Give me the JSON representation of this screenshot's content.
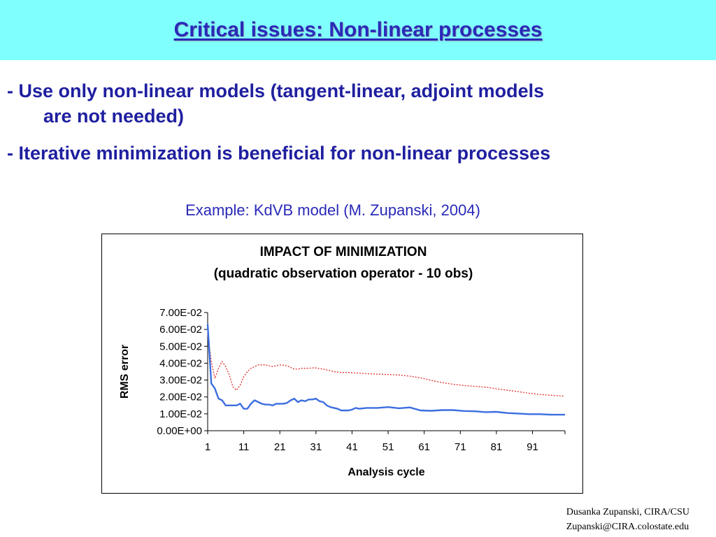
{
  "slide": {
    "title": "Critical issues: Non-linear processes",
    "bullet1_line1": "- Use only non-linear models (tangent-linear, adjoint models",
    "bullet1_line2": "are not needed)",
    "bullet2": "- Iterative minimization is beneficial for non-linear processes",
    "example": "Example: KdVB model (M. Zupanski, 2004)",
    "footer_line1": "Dusanka Zupanski,  CIRA/CSU",
    "footer_line2": "Zupanski@CIRA.colostate.edu"
  },
  "colors": {
    "title_band": "#80ffff",
    "title_text": "#2a2ab8",
    "bullet_text": "#1f1fa0",
    "series_dashed": "#e03030",
    "series_solid": "#3c6ee0"
  },
  "chart_data": {
    "type": "line",
    "title": "IMPACT OF MINIMIZATION",
    "subtitle": "(quadratic observation operator - 10 obs)",
    "xlabel": "Analysis cycle",
    "ylabel": "RMS error",
    "xlim": [
      1,
      100
    ],
    "ylim": [
      0,
      0.07
    ],
    "x_ticks": [
      1,
      11,
      21,
      31,
      41,
      51,
      61,
      71,
      81,
      91
    ],
    "y_ticks": [
      0,
      0.01,
      0.02,
      0.03,
      0.04,
      0.05,
      0.06,
      0.07
    ],
    "y_tick_labels": [
      "0.00E+00",
      "1.00E-02",
      "2.00E-02",
      "3.00E-02",
      "4.00E-02",
      "5.00E-02",
      "6.00E-02",
      "7.00E-02"
    ],
    "grid": false,
    "legend": "none",
    "series": [
      {
        "style": "dashed",
        "color": "#e03030",
        "x": [
          1,
          2,
          3,
          4,
          5,
          6,
          7,
          8,
          9,
          10,
          11,
          12,
          13,
          14,
          15,
          16,
          17,
          18,
          19,
          20,
          21,
          22,
          23,
          24,
          25,
          26,
          27,
          28,
          29,
          30,
          31,
          32,
          33,
          34,
          35,
          36,
          37,
          38,
          39,
          40,
          42,
          45,
          48,
          51,
          54,
          57,
          60,
          63,
          66,
          69,
          72,
          75,
          78,
          81,
          84,
          87,
          90,
          93,
          96,
          100
        ],
        "y": [
          0.058,
          0.041,
          0.031,
          0.037,
          0.041,
          0.038,
          0.033,
          0.026,
          0.024,
          0.027,
          0.032,
          0.035,
          0.037,
          0.038,
          0.039,
          0.039,
          0.039,
          0.0385,
          0.038,
          0.0385,
          0.039,
          0.0388,
          0.0385,
          0.0375,
          0.0365,
          0.0365,
          0.037,
          0.037,
          0.037,
          0.0372,
          0.0372,
          0.0368,
          0.0365,
          0.036,
          0.0355,
          0.035,
          0.0347,
          0.0345,
          0.0345,
          0.0345,
          0.0342,
          0.0338,
          0.0335,
          0.0333,
          0.033,
          0.0323,
          0.0313,
          0.0298,
          0.0285,
          0.0275,
          0.0268,
          0.0263,
          0.0258,
          0.0248,
          0.024,
          0.0232,
          0.0222,
          0.0215,
          0.021,
          0.0205
        ]
      },
      {
        "style": "solid",
        "color": "#3c6ee0",
        "x": [
          1,
          2,
          3,
          4,
          5,
          6,
          7,
          8,
          9,
          10,
          11,
          12,
          13,
          14,
          15,
          16,
          17,
          18,
          19,
          20,
          21,
          22,
          23,
          24,
          25,
          26,
          27,
          28,
          29,
          30,
          31,
          32,
          33,
          34,
          35,
          36,
          37,
          38,
          39,
          40,
          41,
          42,
          43,
          45,
          48,
          51,
          54,
          57,
          60,
          63,
          66,
          69,
          72,
          75,
          78,
          81,
          84,
          87,
          90,
          93,
          96,
          100
        ],
        "y": [
          0.063,
          0.028,
          0.025,
          0.019,
          0.018,
          0.015,
          0.015,
          0.015,
          0.015,
          0.016,
          0.013,
          0.013,
          0.016,
          0.018,
          0.017,
          0.016,
          0.0155,
          0.0155,
          0.015,
          0.016,
          0.016,
          0.016,
          0.0165,
          0.018,
          0.019,
          0.017,
          0.018,
          0.0175,
          0.0185,
          0.0185,
          0.019,
          0.0175,
          0.017,
          0.015,
          0.014,
          0.0135,
          0.013,
          0.012,
          0.012,
          0.012,
          0.0125,
          0.0135,
          0.013,
          0.0135,
          0.0135,
          0.014,
          0.0133,
          0.0138,
          0.012,
          0.0118,
          0.0122,
          0.0122,
          0.0117,
          0.0115,
          0.011,
          0.0112,
          0.0105,
          0.0102,
          0.0098,
          0.0098,
          0.0095,
          0.0095
        ]
      }
    ]
  }
}
